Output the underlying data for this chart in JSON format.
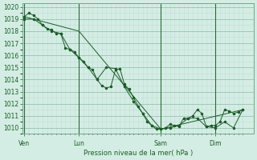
{
  "background_color": "#d4ede4",
  "grid_color_minor": "#c0ddd4",
  "grid_color_major": "#90b8a8",
  "line_color": "#1a5c28",
  "ylabel": "Pression niveau de la mer( hPa )",
  "ylim": [
    1009.5,
    1020.3
  ],
  "yticks": [
    1010,
    1011,
    1012,
    1013,
    1014,
    1015,
    1016,
    1017,
    1018,
    1019,
    1020
  ],
  "day_labels": [
    "Ven",
    "Lun",
    "Sam",
    "Dim"
  ],
  "day_positions": [
    0.0,
    0.25,
    0.625,
    0.875
  ],
  "xlim": [
    -0.01,
    1.05
  ],
  "series1_x": [
    0.0,
    0.021,
    0.042,
    0.063,
    0.083,
    0.104,
    0.125,
    0.146,
    0.167,
    0.188,
    0.208,
    0.229,
    0.25,
    0.271,
    0.292,
    0.313,
    0.333,
    0.354,
    0.375,
    0.396,
    0.417,
    0.438,
    0.458,
    0.479,
    0.5,
    0.521,
    0.542,
    0.563,
    0.583,
    0.604,
    0.625,
    0.646,
    0.667,
    0.688,
    0.708,
    0.729,
    0.75,
    0.771,
    0.792,
    0.813,
    0.833,
    0.854,
    0.875,
    0.896,
    0.917,
    0.938,
    0.958,
    0.979,
    1.0
  ],
  "series1_y": [
    1019.2,
    1019.5,
    1019.3,
    1019.0,
    1018.5,
    1018.2,
    1018.1,
    1017.8,
    1017.8,
    1016.6,
    1016.5,
    1016.3,
    1015.8,
    1015.5,
    1015.0,
    1014.8,
    1014.0,
    1013.5,
    1013.3,
    1013.4,
    1014.8,
    1014.9,
    1013.6,
    1013.2,
    1012.5,
    1011.8,
    1011.2,
    1010.5,
    1010.2,
    1009.9,
    1009.9,
    1010.0,
    1010.3,
    1010.2,
    1010.1,
    1010.8,
    1010.8,
    1011.0,
    1011.5,
    1011.2,
    1010.1,
    1010.2,
    1010.2,
    1010.5,
    1011.5,
    1011.4,
    1011.2,
    1011.3,
    1011.5
  ],
  "series2_x": [
    0.0,
    0.042,
    0.083,
    0.125,
    0.167,
    0.208,
    0.25,
    0.292,
    0.333,
    0.375,
    0.417,
    0.458,
    0.5,
    0.542,
    0.583,
    0.625,
    0.667,
    0.708,
    0.75,
    0.792,
    0.833,
    0.875,
    0.917,
    0.958,
    1.0
  ],
  "series2_y": [
    1019.0,
    1019.0,
    1018.5,
    1018.0,
    1017.8,
    1016.5,
    1015.8,
    1015.0,
    1014.0,
    1015.0,
    1014.9,
    1013.4,
    1012.2,
    1011.2,
    1010.2,
    1009.9,
    1010.0,
    1010.2,
    1010.8,
    1010.8,
    1010.1,
    1010.0,
    1010.5,
    1010.0,
    1011.5
  ],
  "series3_x": [
    0.0,
    0.25,
    0.625,
    1.0
  ],
  "series3_y": [
    1019.2,
    1018.0,
    1009.9,
    1011.5
  ]
}
